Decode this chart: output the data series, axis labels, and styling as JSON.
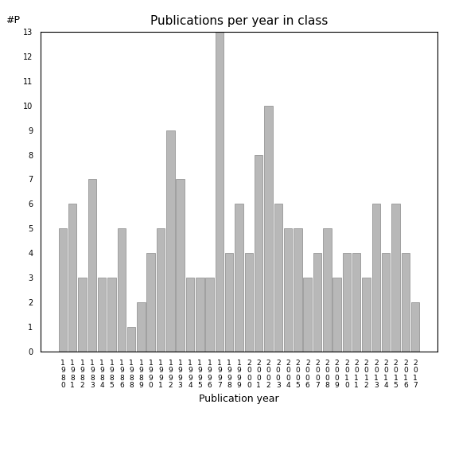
{
  "years": [
    "1980",
    "1981",
    "1982",
    "1983",
    "1984",
    "1985",
    "1986",
    "1988",
    "1989",
    "1990",
    "1991",
    "1992",
    "1993",
    "1994",
    "1995",
    "1996",
    "1997",
    "1998",
    "1999",
    "2000",
    "2001",
    "2002",
    "2003",
    "2004",
    "2005",
    "2006",
    "2007",
    "2008",
    "2009",
    "2010",
    "2011",
    "2012",
    "2013",
    "2014",
    "2015",
    "2016",
    "2017"
  ],
  "values": [
    5,
    6,
    3,
    7,
    3,
    3,
    5,
    1,
    2,
    4,
    5,
    9,
    7,
    3,
    3,
    3,
    13,
    4,
    6,
    4,
    8,
    10,
    6,
    5,
    5,
    3,
    4,
    5,
    3,
    4,
    4,
    3,
    6,
    4,
    6,
    4,
    2
  ],
  "title": "Publications per year in class",
  "xlabel": "Publication year",
  "ylabel": "#P",
  "ylim_max": 13,
  "bar_color": "#b8b8b8",
  "bar_edgecolor": "#888888",
  "background_color": "#ffffff",
  "title_fontsize": 11,
  "label_fontsize": 9,
  "tick_fontsize": 6.5
}
